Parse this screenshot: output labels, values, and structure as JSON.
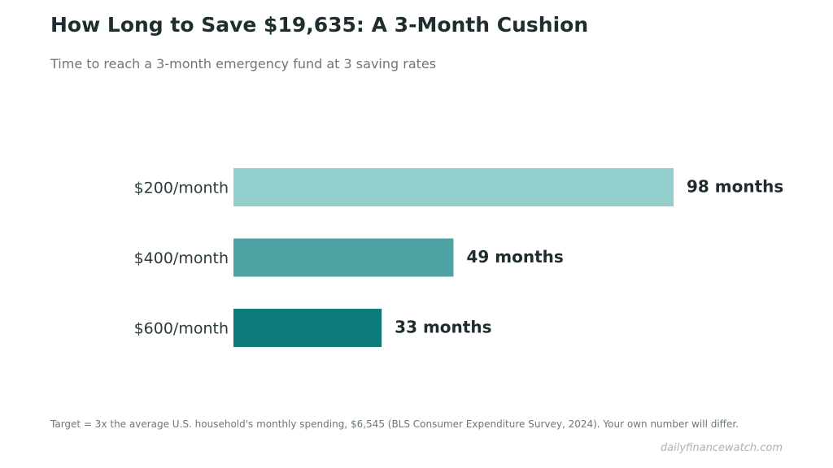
{
  "title": "How Long to Save $19,635: A 3-Month Cushion",
  "subtitle": "Time to reach a 3-month emergency fund at 3 saving rates",
  "footnote": "Target = 3x the average U.S. household's monthly spending, $6,545 (BLS Consumer Expenditure Survey, 2024). Your own number will differ.",
  "credit": "dailyfinancewatch.com",
  "chart_data": {
    "type": "bar",
    "orientation": "horizontal",
    "categories": [
      "$200/month",
      "$400/month",
      "$600/month"
    ],
    "values": [
      98,
      49,
      33
    ],
    "value_labels": [
      "98 months",
      "49 months",
      "33 months"
    ],
    "colors": [
      "#92cecb",
      "#50a3a4",
      "#0e7b7a"
    ],
    "xlim": [
      0,
      98
    ],
    "grid": false,
    "legend": false
  }
}
